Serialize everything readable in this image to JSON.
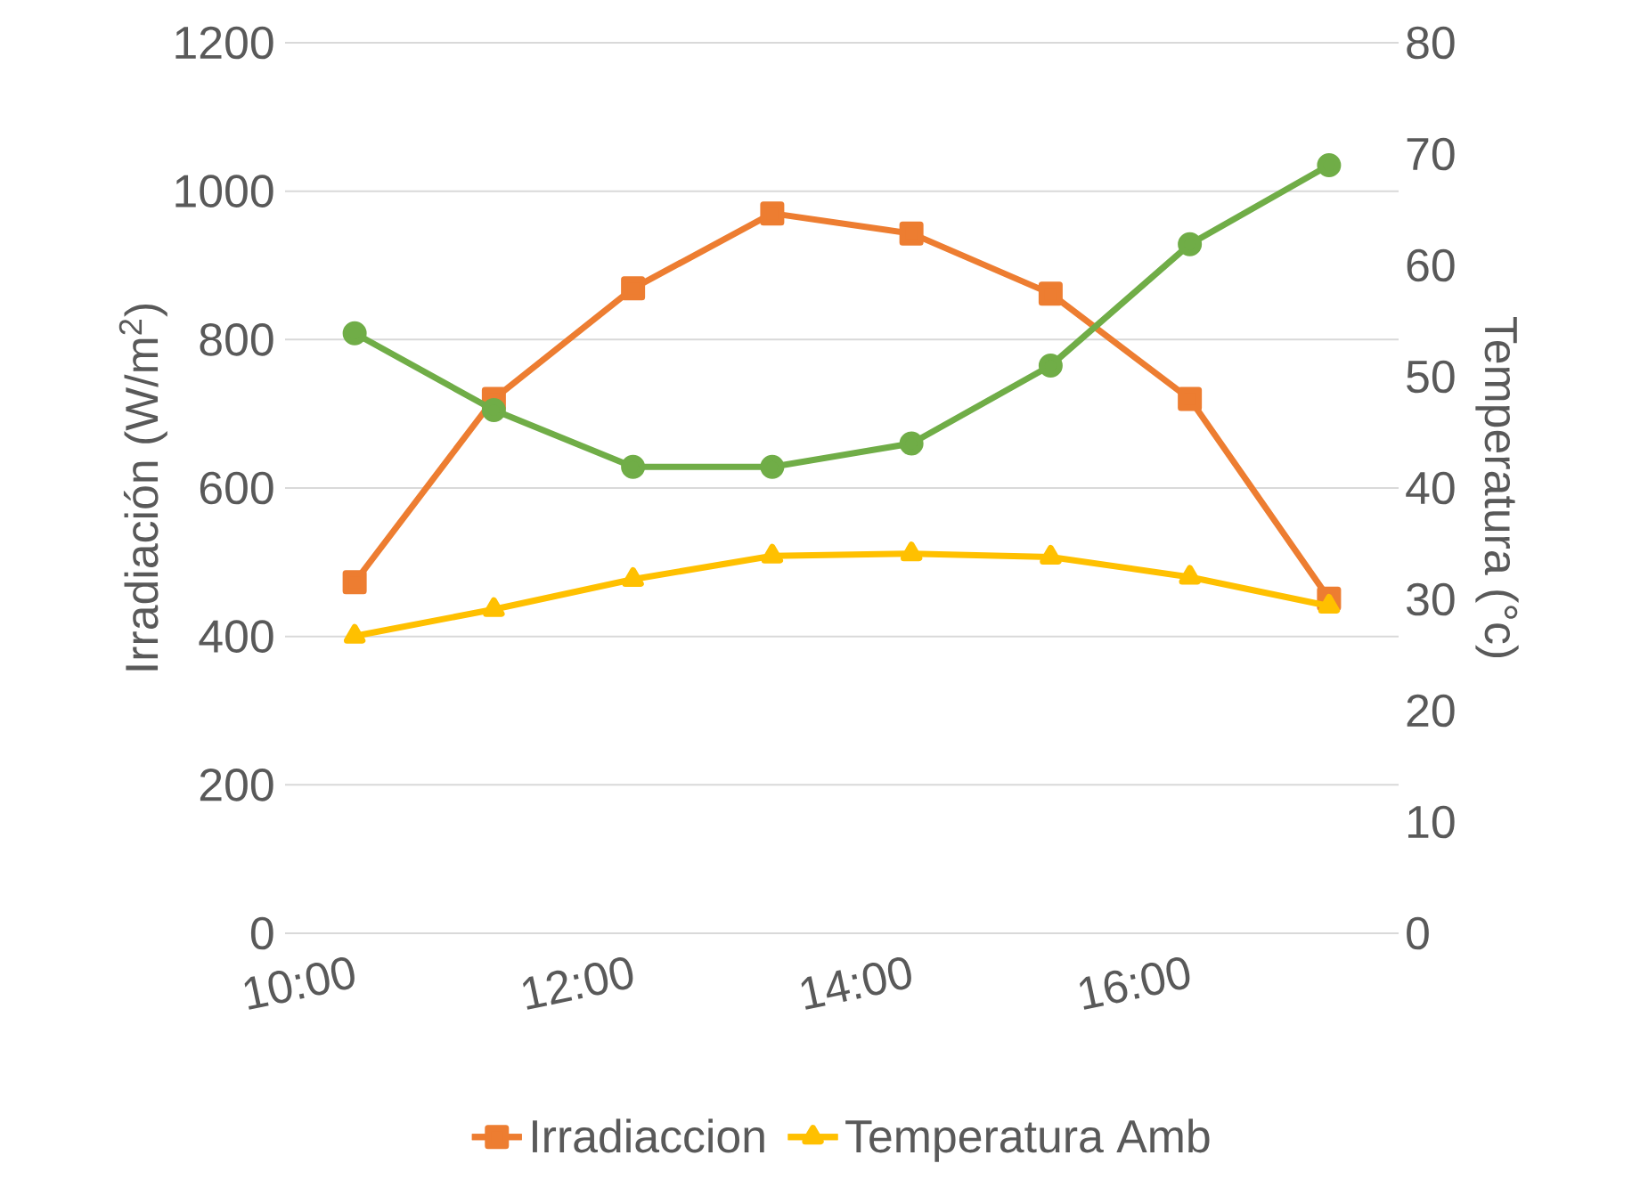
{
  "chart_data": {
    "type": "line",
    "ylabel": "Irradiación (W/m$^{2}$)",
    "y2label": "Temperatura (°c)",
    "categories": [
      "10:00",
      null,
      "12:00",
      null,
      "14:00",
      null,
      "16:00",
      null
    ],
    "series": [
      {
        "name": "Irradiaccion",
        "color": "#ed7d31",
        "marker": "square",
        "values": [
          473,
          720,
          869,
          970,
          943,
          862,
          720,
          451
        ]
      },
      {
        "name": "Temperatura Amb",
        "color": "#ffc000",
        "marker": "triangle",
        "axis": "y2",
        "values": [
          26.7,
          29.1,
          31.8,
          33.9,
          34.1,
          33.8,
          32.0,
          29.4
        ]
      },
      {
        "color": "#70ad47",
        "marker": "circle",
        "axis": "y2",
        "values": [
          53.9,
          47.0,
          41.9,
          41.9,
          44.0,
          51.0,
          61.9,
          69.0
        ]
      }
    ],
    "ylim": [
      0,
      1200
    ],
    "yticks": [
      0,
      200,
      400,
      600,
      800,
      1000,
      1200
    ],
    "y2lim": [
      0,
      80
    ],
    "y2ticks": [
      0,
      10,
      20,
      30,
      40,
      50,
      60,
      70,
      80
    ],
    "grid": "y",
    "legend": "bottom",
    "line_style": "solid"
  }
}
